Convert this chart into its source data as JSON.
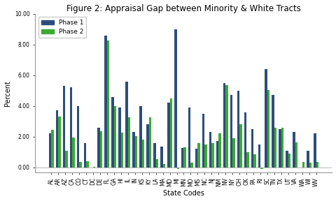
{
  "title": "Figure 2: Appraisal Gap between Minority & White Tracts",
  "xlabel": "State Codes",
  "ylabel": "Percent",
  "ylim": [
    -0.3,
    10.0
  ],
  "yticks": [
    0.0,
    2.0,
    4.0,
    6.0,
    8.0,
    10.0
  ],
  "ytick_labels": [
    "0.00",
    "2.00",
    "4.00",
    "6.00",
    "8.00",
    "10.00"
  ],
  "bar_color_phase1": "#2E4D7B",
  "bar_color_phase2": "#3AAA35",
  "states": [
    "AL",
    "AR",
    "AZ",
    "CA",
    "CO",
    "CT",
    "DC",
    "DE",
    "FL",
    "GA",
    "HI",
    "IL",
    "IN",
    "KS",
    "KY",
    "LA",
    "MA",
    "MD",
    "MI",
    "MN",
    "MO",
    "MS",
    "NC",
    "NJ",
    "NM",
    "NV",
    "NY",
    "OH",
    "OK",
    "PA",
    "RI",
    "SC",
    "TN",
    "TX",
    "UT",
    "VA",
    "WA",
    "WI",
    "WV"
  ],
  "phase1": [
    2.2,
    3.7,
    5.3,
    5.2,
    4.0,
    1.6,
    0.0,
    2.6,
    8.6,
    4.6,
    3.9,
    5.6,
    2.3,
    4.0,
    2.8,
    1.6,
    1.35,
    4.2,
    9.0,
    1.25,
    3.9,
    1.2,
    3.5,
    2.3,
    1.7,
    5.5,
    4.7,
    5.0,
    3.6,
    2.5,
    1.5,
    6.4,
    4.7,
    2.5,
    1.1,
    2.3,
    0.0,
    1.1,
    2.2
  ],
  "phase2": [
    2.45,
    3.3,
    1.1,
    1.95,
    0.35,
    0.4,
    0.05,
    2.35,
    8.25,
    4.0,
    2.25,
    3.25,
    2.05,
    1.8,
    3.25,
    0.55,
    0.2,
    4.5,
    -0.1,
    1.3,
    0.3,
    1.6,
    1.5,
    1.6,
    2.2,
    5.35,
    1.9,
    2.8,
    1.0,
    0.85,
    -0.1,
    5.05,
    2.6,
    2.6,
    0.9,
    1.65,
    0.35,
    0.3,
    0.35
  ],
  "legend_phase1": "Phase 1",
  "legend_phase2": "Phase 2",
  "background_color": "#FFFFFF",
  "plot_background": "#FFFFFF",
  "bar_width": 0.35,
  "title_fontsize": 8.5,
  "axis_label_fontsize": 7,
  "tick_fontsize": 5.5,
  "legend_fontsize": 6.5
}
